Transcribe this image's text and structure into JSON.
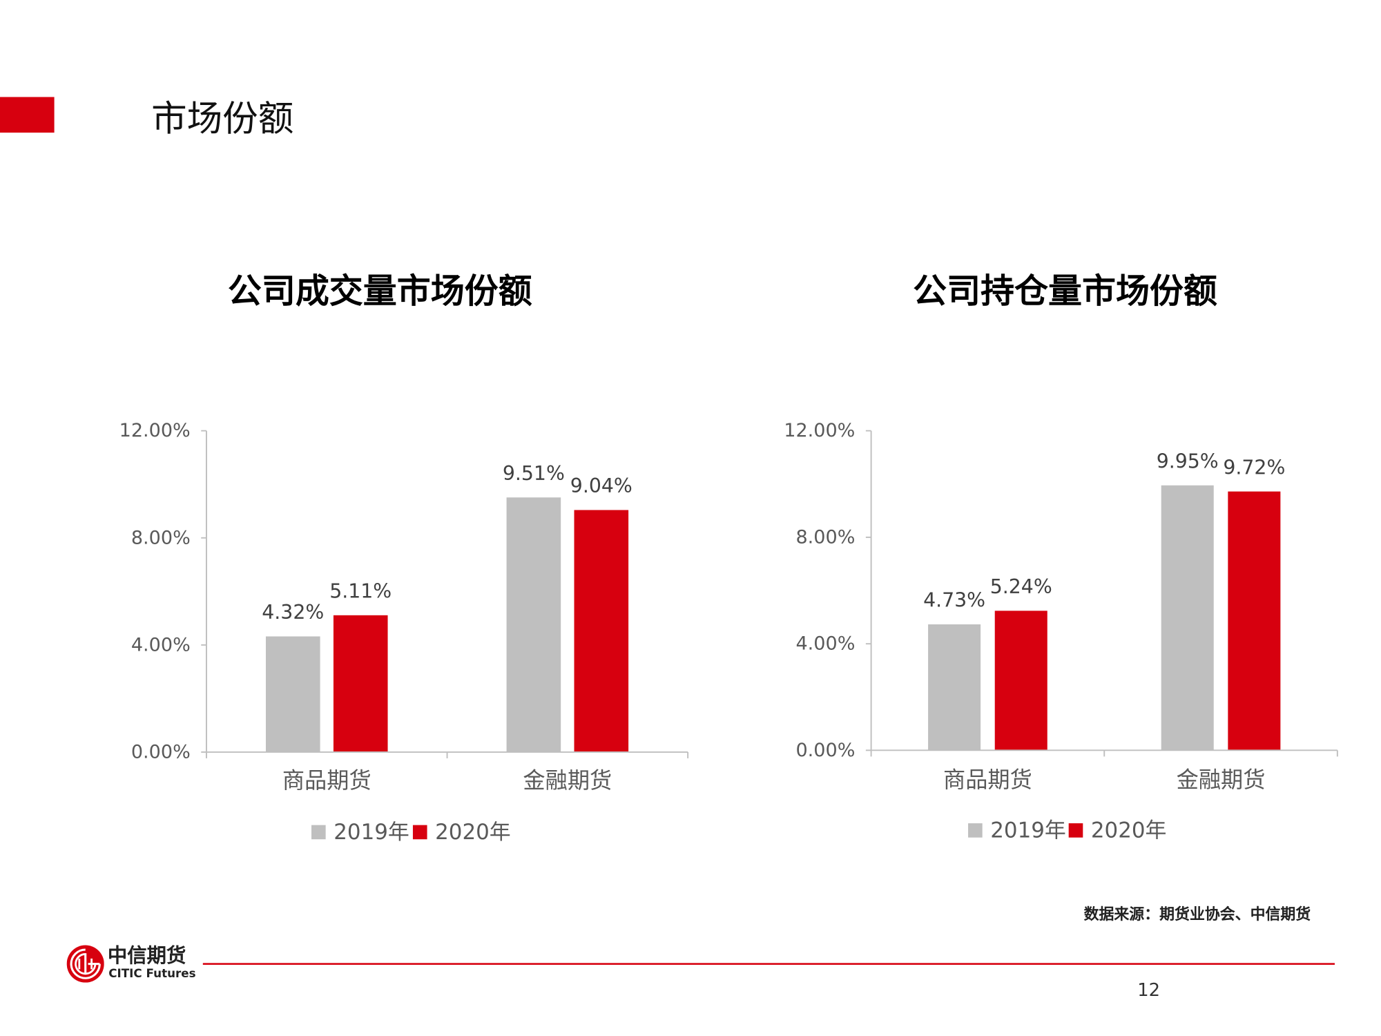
{
  "slide": {
    "title": "市场份额",
    "source_note": "数据来源：期货业协会、中信期货",
    "page_number": "12",
    "accent_color": "#D7000F"
  },
  "logo": {
    "icon": "citic-logo-icon",
    "name_cn": "中信期货",
    "name_en": "CITIC Futures"
  },
  "chart_data": [
    {
      "type": "bar",
      "title": "公司成交量市场份额",
      "categories": [
        "商品期货",
        "金融期货"
      ],
      "series": [
        {
          "name": "2019年",
          "values": [
            4.32,
            9.51
          ],
          "value_labels": [
            "4.32%",
            "9.51%"
          ],
          "color": "#BFBFBF"
        },
        {
          "name": "2020年",
          "values": [
            5.11,
            9.04
          ],
          "value_labels": [
            "5.11%",
            "9.04%"
          ],
          "color": "#D7000F"
        }
      ],
      "ylim": [
        0,
        12
      ],
      "ytick_values": [
        0,
        4,
        8,
        12
      ],
      "ytick_labels": [
        "0.00%",
        "4.00%",
        "8.00%",
        "12.00%"
      ],
      "xlabel": "",
      "ylabel": "",
      "legend": "bottom",
      "grid": false
    },
    {
      "type": "bar",
      "title": "公司持仓量市场份额",
      "categories": [
        "商品期货",
        "金融期货"
      ],
      "series": [
        {
          "name": "2019年",
          "values": [
            4.73,
            9.95
          ],
          "value_labels": [
            "4.73%",
            "9.95%"
          ],
          "color": "#BFBFBF"
        },
        {
          "name": "2020年",
          "values": [
            5.24,
            9.72
          ],
          "value_labels": [
            "5.24%",
            "9.72%"
          ],
          "color": "#D7000F"
        }
      ],
      "ylim": [
        0,
        12
      ],
      "ytick_values": [
        0,
        4,
        8,
        12
      ],
      "ytick_labels": [
        "0.00%",
        "4.00%",
        "8.00%",
        "12.00%"
      ],
      "xlabel": "",
      "ylabel": "",
      "legend": "bottom",
      "grid": false
    }
  ]
}
